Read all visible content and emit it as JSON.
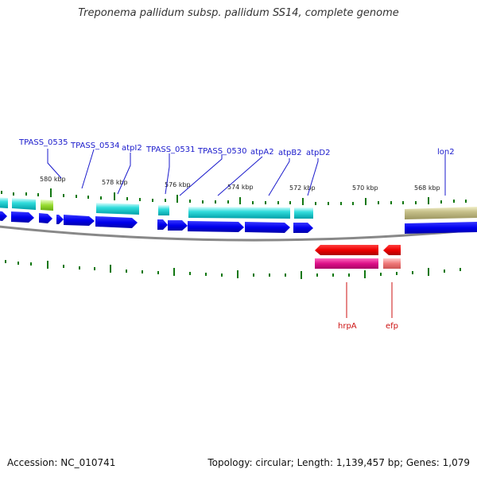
{
  "title": "Treponema pallidum subsp. pallidum SS14, complete genome",
  "accession": "Accession: NC_010741",
  "summary": "Topology: circular; Length: 1,139,457 bp; Genes: 1,079",
  "colors": {
    "forward_cds": "#0000ee",
    "forward_gene": "#00cccc",
    "forward_label": "#1a1acc",
    "reverse_cds": "#ee0000",
    "reverse_gene": "#cc1177",
    "reverse_label": "#cc1111",
    "tick": "#117711",
    "backbone": "#888888"
  },
  "tick_labels": [
    "580 kbp",
    "578 kbp",
    "576 kbp",
    "574 kbp",
    "572 kbp",
    "570 kbp",
    "568 kbp"
  ],
  "forward_gene_labels": [
    "TPASS_0535",
    "TPASS_0534",
    "atpI2",
    "TPASS_0531",
    "TPASS_0530",
    "atpA2",
    "atpB2",
    "atpD2",
    "lon2"
  ],
  "reverse_gene_labels": [
    "hrpA",
    "efp"
  ]
}
